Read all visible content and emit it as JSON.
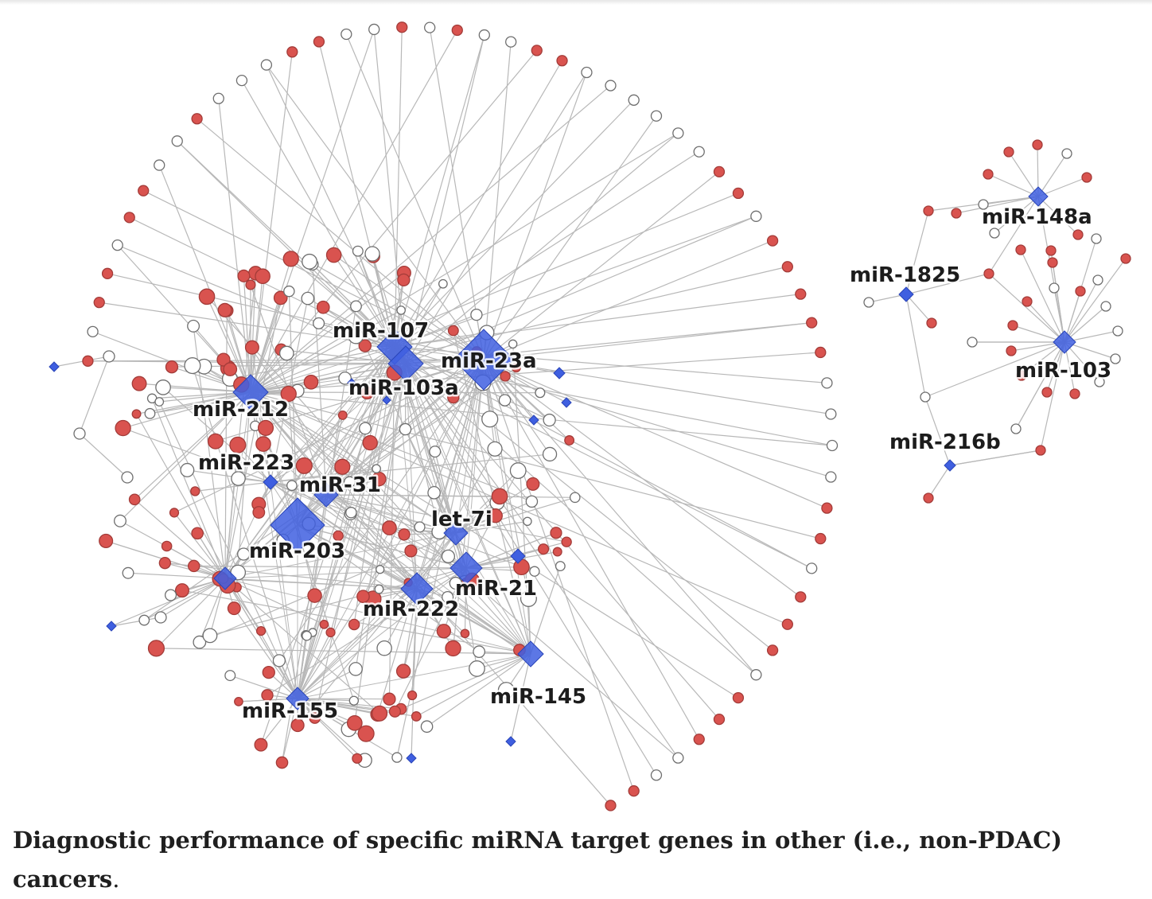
{
  "figure": {
    "caption_bold": "Diagnostic performance of specific miRNA target genes in other (i.e., non-PDAC) cancers",
    "caption_end": "."
  },
  "legend_colors": {
    "mirna_node": "#3f5fe0",
    "target_gene_red": "#d9534f",
    "target_gene_white": "#ffffff",
    "edge": "#b8b8b8"
  },
  "mirna_labels": {
    "miR_107": "miR-107",
    "miR_23a": "miR-23a",
    "miR_103a": "miR-103a",
    "miR_212": "miR-212",
    "miR_223": "miR-223",
    "miR_31": "miR-31",
    "let_7i": "let-7i",
    "miR_203": "miR-203",
    "miR_21": "miR-21",
    "miR_222": "miR-222",
    "miR_145": "miR-145",
    "miR_155": "miR-155",
    "miR_148a": "miR-148a",
    "miR_1825": "miR-1825",
    "miR_103": "miR-103",
    "miR_216b": "miR-216b"
  }
}
